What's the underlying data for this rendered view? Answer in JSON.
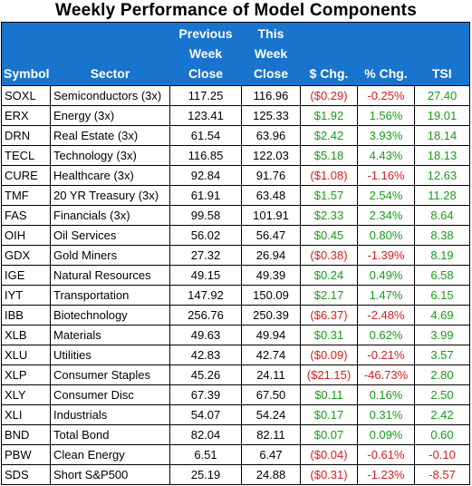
{
  "title": "Weekly Performance of Model Components",
  "colors": {
    "header_bg": "#1874cd",
    "positive": "#1a9a1a",
    "negative": "#d42020"
  },
  "columns": {
    "symbol": "Symbol",
    "sector": "Sector",
    "prev_l1": "Previous",
    "prev_l2": "Week",
    "prev_l3": "Close",
    "this_l1": "This",
    "this_l2": "Week",
    "this_l3": "Close",
    "dchg": "$ Chg.",
    "pchg": "% Chg.",
    "tsi": "TSI"
  },
  "rows": [
    {
      "symbol": "SOXL",
      "sector": "Semiconductors (3x)",
      "prev": "117.25",
      "cur": "116.96",
      "dchg": "($0.29)",
      "pchg": "-0.25%",
      "tsi": "27.40",
      "dir": "neg",
      "tsi_dir": "pos"
    },
    {
      "symbol": "ERX",
      "sector": "Energy (3x)",
      "prev": "123.41",
      "cur": "125.33",
      "dchg": "$1.92",
      "pchg": "1.56%",
      "tsi": "19.01",
      "dir": "pos",
      "tsi_dir": "pos"
    },
    {
      "symbol": "DRN",
      "sector": "Real Estate (3x)",
      "prev": "61.54",
      "cur": "63.96",
      "dchg": "$2.42",
      "pchg": "3.93%",
      "tsi": "18.14",
      "dir": "pos",
      "tsi_dir": "pos"
    },
    {
      "symbol": "TECL",
      "sector": "Technology (3x)",
      "prev": "116.85",
      "cur": "122.03",
      "dchg": "$5.18",
      "pchg": "4.43%",
      "tsi": "18.13",
      "dir": "pos",
      "tsi_dir": "pos"
    },
    {
      "symbol": "CURE",
      "sector": "Healthcare (3x)",
      "prev": "92.84",
      "cur": "91.76",
      "dchg": "($1.08)",
      "pchg": "-1.16%",
      "tsi": "12.63",
      "dir": "neg",
      "tsi_dir": "pos"
    },
    {
      "symbol": "TMF",
      "sector": "20 YR Treasury (3x)",
      "prev": "61.91",
      "cur": "63.48",
      "dchg": "$1.57",
      "pchg": "2.54%",
      "tsi": "11.28",
      "dir": "pos",
      "tsi_dir": "pos"
    },
    {
      "symbol": "FAS",
      "sector": "Financials (3x)",
      "prev": "99.58",
      "cur": "101.91",
      "dchg": "$2.33",
      "pchg": "2.34%",
      "tsi": "8.64",
      "dir": "pos",
      "tsi_dir": "pos"
    },
    {
      "symbol": "OIH",
      "sector": "Oil Services",
      "prev": "56.02",
      "cur": "56.47",
      "dchg": "$0.45",
      "pchg": "0.80%",
      "tsi": "8.38",
      "dir": "pos",
      "tsi_dir": "pos"
    },
    {
      "symbol": "GDX",
      "sector": "Gold Miners",
      "prev": "27.32",
      "cur": "26.94",
      "dchg": "($0.38)",
      "pchg": "-1.39%",
      "tsi": "8.19",
      "dir": "neg",
      "tsi_dir": "pos"
    },
    {
      "symbol": "IGE",
      "sector": "Natural Resources",
      "prev": "49.15",
      "cur": "49.39",
      "dchg": "$0.24",
      "pchg": "0.49%",
      "tsi": "6.58",
      "dir": "pos",
      "tsi_dir": "pos"
    },
    {
      "symbol": "IYT",
      "sector": "Transportation",
      "prev": "147.92",
      "cur": "150.09",
      "dchg": "$2.17",
      "pchg": "1.47%",
      "tsi": "6.15",
      "dir": "pos",
      "tsi_dir": "pos"
    },
    {
      "symbol": "IBB",
      "sector": "Biotechnology",
      "prev": "256.76",
      "cur": "250.39",
      "dchg": "($6.37)",
      "pchg": "-2.48%",
      "tsi": "4.69",
      "dir": "neg",
      "tsi_dir": "pos"
    },
    {
      "symbol": "XLB",
      "sector": "Materials",
      "prev": "49.63",
      "cur": "49.94",
      "dchg": "$0.31",
      "pchg": "0.62%",
      "tsi": "3.99",
      "dir": "pos",
      "tsi_dir": "pos"
    },
    {
      "symbol": "XLU",
      "sector": "Utilities",
      "prev": "42.83",
      "cur": "42.74",
      "dchg": "($0.09)",
      "pchg": "-0.21%",
      "tsi": "3.57",
      "dir": "neg",
      "tsi_dir": "pos"
    },
    {
      "symbol": "XLP",
      "sector": "Consumer Staples",
      "prev": "45.26",
      "cur": "24.11",
      "dchg": "($21.15)",
      "pchg": "-46.73%",
      "tsi": "2.80",
      "dir": "neg",
      "tsi_dir": "pos"
    },
    {
      "symbol": "XLY",
      "sector": "Consumer Disc",
      "prev": "67.39",
      "cur": "67.50",
      "dchg": "$0.11",
      "pchg": "0.16%",
      "tsi": "2.50",
      "dir": "pos",
      "tsi_dir": "pos"
    },
    {
      "symbol": "XLI",
      "sector": "Industrials",
      "prev": "54.07",
      "cur": "54.24",
      "dchg": "$0.17",
      "pchg": "0.31%",
      "tsi": "2.42",
      "dir": "pos",
      "tsi_dir": "pos"
    },
    {
      "symbol": "BND",
      "sector": "Total Bond",
      "prev": "82.04",
      "cur": "82.11",
      "dchg": "$0.07",
      "pchg": "0.09%",
      "tsi": "0.60",
      "dir": "pos",
      "tsi_dir": "pos"
    },
    {
      "symbol": "PBW",
      "sector": "Clean Energy",
      "prev": "6.51",
      "cur": "6.47",
      "dchg": "($0.04)",
      "pchg": "-0.61%",
      "tsi": "-0.10",
      "dir": "neg",
      "tsi_dir": "neg"
    },
    {
      "symbol": "SDS",
      "sector": "Short S&P500",
      "prev": "25.19",
      "cur": "24.88",
      "dchg": "($0.31)",
      "pchg": "-1.23%",
      "tsi": "-8.57",
      "dir": "neg",
      "tsi_dir": "neg"
    }
  ]
}
